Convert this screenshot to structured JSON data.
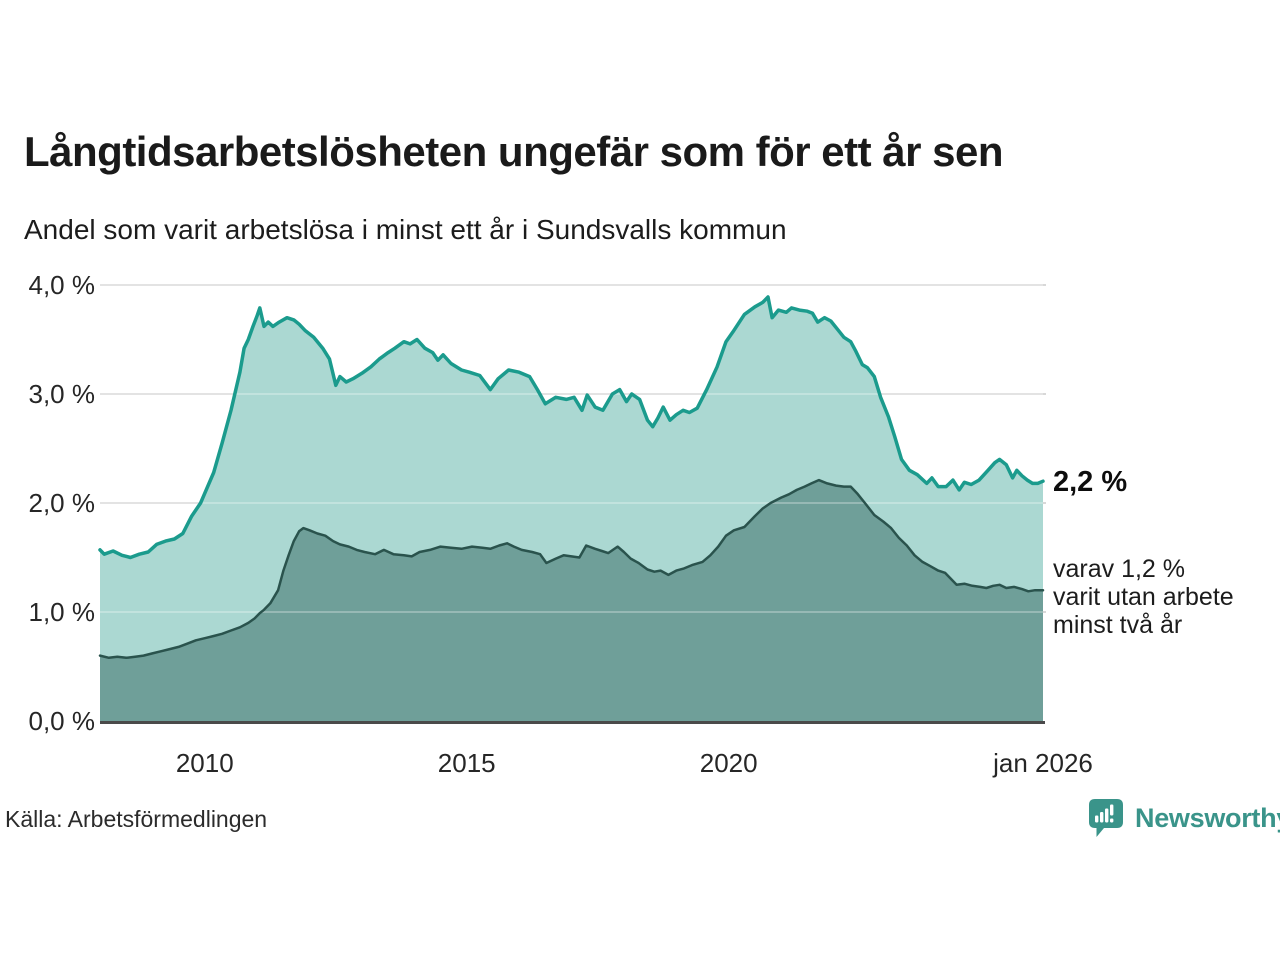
{
  "header": {
    "title": "Långtidsarbetslösheten ungefär som för ett år sen",
    "subtitle": "Andel som varit arbetslösa i minst ett år i Sundsvalls kommun"
  },
  "annotations": {
    "total_value": "2,2 %",
    "subset_lines": [
      "varav 1,2 %",
      "varit utan arbete",
      "minst två år"
    ]
  },
  "footer": {
    "source": "Källa: Arbetsförmedlingen",
    "brand": "Newsworthy"
  },
  "colors": {
    "accent_teal": "#1b9b8d",
    "light_fill": "#abd8d2",
    "dark_line": "#2a534d",
    "dark_fill": "#6f9f99",
    "gridline": "#d8d8d8",
    "axis": "#4a4a4a",
    "brand": "#3a948a",
    "text": "#1a1a1a"
  },
  "chart_data": {
    "type": "area",
    "title": "Långtidsarbetslösheten ungefär som för ett år sen",
    "subtitle": "Andel som varit arbetslösa i minst ett år i Sundsvalls kommun",
    "x_unit": "decimal_year",
    "x_range": [
      2008.0,
      2026.0
    ],
    "ylim": [
      0,
      4
    ],
    "grid": true,
    "y_ticks": [
      {
        "v": 0,
        "label": "0,0 %"
      },
      {
        "v": 1,
        "label": "1,0 %"
      },
      {
        "v": 2,
        "label": "2,0 %"
      },
      {
        "v": 3,
        "label": "3,0 %"
      },
      {
        "v": 4,
        "label": "4,0 %"
      }
    ],
    "x_ticks": [
      {
        "t": 2010,
        "label": "2010"
      },
      {
        "t": 2015,
        "label": "2015"
      },
      {
        "t": 2020,
        "label": "2020"
      },
      {
        "t": 2026,
        "label": "jan 2026"
      }
    ],
    "series": [
      {
        "id": "total",
        "name": "Andel som varit arbetslösa i minst ett år",
        "end_label": "2,2 %",
        "color": "#1b9b8d",
        "fill": "#abd8d2",
        "stroke_width": 3.5,
        "points": [
          [
            2008.0,
            1.57
          ],
          [
            2008.08,
            1.53
          ],
          [
            2008.25,
            1.56
          ],
          [
            2008.42,
            1.52
          ],
          [
            2008.58,
            1.5
          ],
          [
            2008.75,
            1.53
          ],
          [
            2008.92,
            1.55
          ],
          [
            2009.08,
            1.62
          ],
          [
            2009.25,
            1.65
          ],
          [
            2009.42,
            1.67
          ],
          [
            2009.58,
            1.72
          ],
          [
            2009.75,
            1.88
          ],
          [
            2009.92,
            2.0
          ],
          [
            2010.0,
            2.09
          ],
          [
            2010.17,
            2.28
          ],
          [
            2010.33,
            2.55
          ],
          [
            2010.5,
            2.85
          ],
          [
            2010.67,
            3.2
          ],
          [
            2010.75,
            3.42
          ],
          [
            2010.83,
            3.5
          ],
          [
            2010.92,
            3.62
          ],
          [
            2011.0,
            3.72
          ],
          [
            2011.05,
            3.79
          ],
          [
            2011.13,
            3.62
          ],
          [
            2011.21,
            3.66
          ],
          [
            2011.3,
            3.62
          ],
          [
            2011.42,
            3.66
          ],
          [
            2011.57,
            3.7
          ],
          [
            2011.7,
            3.68
          ],
          [
            2011.8,
            3.64
          ],
          [
            2011.92,
            3.58
          ],
          [
            2012.08,
            3.52
          ],
          [
            2012.25,
            3.42
          ],
          [
            2012.38,
            3.32
          ],
          [
            2012.5,
            3.08
          ],
          [
            2012.58,
            3.16
          ],
          [
            2012.7,
            3.11
          ],
          [
            2012.83,
            3.14
          ],
          [
            2013.0,
            3.19
          ],
          [
            2013.17,
            3.25
          ],
          [
            2013.33,
            3.32
          ],
          [
            2013.5,
            3.38
          ],
          [
            2013.63,
            3.42
          ],
          [
            2013.8,
            3.48
          ],
          [
            2013.92,
            3.46
          ],
          [
            2014.05,
            3.5
          ],
          [
            2014.2,
            3.42
          ],
          [
            2014.35,
            3.38
          ],
          [
            2014.45,
            3.31
          ],
          [
            2014.55,
            3.36
          ],
          [
            2014.7,
            3.28
          ],
          [
            2014.9,
            3.22
          ],
          [
            2015.05,
            3.2
          ],
          [
            2015.25,
            3.17
          ],
          [
            2015.45,
            3.04
          ],
          [
            2015.6,
            3.14
          ],
          [
            2015.8,
            3.22
          ],
          [
            2016.0,
            3.2
          ],
          [
            2016.2,
            3.16
          ],
          [
            2016.35,
            3.04
          ],
          [
            2016.5,
            2.91
          ],
          [
            2016.7,
            2.97
          ],
          [
            2016.9,
            2.95
          ],
          [
            2017.05,
            2.97
          ],
          [
            2017.2,
            2.85
          ],
          [
            2017.3,
            2.99
          ],
          [
            2017.45,
            2.88
          ],
          [
            2017.6,
            2.85
          ],
          [
            2017.78,
            3.0
          ],
          [
            2017.92,
            3.04
          ],
          [
            2018.05,
            2.93
          ],
          [
            2018.15,
            3.0
          ],
          [
            2018.3,
            2.95
          ],
          [
            2018.45,
            2.76
          ],
          [
            2018.55,
            2.7
          ],
          [
            2018.65,
            2.78
          ],
          [
            2018.75,
            2.88
          ],
          [
            2018.88,
            2.76
          ],
          [
            2019.0,
            2.81
          ],
          [
            2019.13,
            2.85
          ],
          [
            2019.25,
            2.83
          ],
          [
            2019.4,
            2.87
          ],
          [
            2019.58,
            3.04
          ],
          [
            2019.78,
            3.25
          ],
          [
            2019.95,
            3.48
          ],
          [
            2020.08,
            3.57
          ],
          [
            2020.3,
            3.73
          ],
          [
            2020.5,
            3.8
          ],
          [
            2020.65,
            3.84
          ],
          [
            2020.75,
            3.89
          ],
          [
            2020.83,
            3.7
          ],
          [
            2020.95,
            3.77
          ],
          [
            2021.1,
            3.75
          ],
          [
            2021.2,
            3.79
          ],
          [
            2021.35,
            3.77
          ],
          [
            2021.5,
            3.76
          ],
          [
            2021.6,
            3.74
          ],
          [
            2021.7,
            3.66
          ],
          [
            2021.83,
            3.7
          ],
          [
            2021.95,
            3.67
          ],
          [
            2022.1,
            3.58
          ],
          [
            2022.2,
            3.52
          ],
          [
            2022.33,
            3.48
          ],
          [
            2022.42,
            3.4
          ],
          [
            2022.55,
            3.27
          ],
          [
            2022.65,
            3.24
          ],
          [
            2022.78,
            3.16
          ],
          [
            2022.9,
            2.97
          ],
          [
            2023.05,
            2.79
          ],
          [
            2023.17,
            2.61
          ],
          [
            2023.3,
            2.4
          ],
          [
            2023.45,
            2.3
          ],
          [
            2023.6,
            2.26
          ],
          [
            2023.78,
            2.18
          ],
          [
            2023.88,
            2.23
          ],
          [
            2024.0,
            2.15
          ],
          [
            2024.15,
            2.15
          ],
          [
            2024.28,
            2.21
          ],
          [
            2024.4,
            2.12
          ],
          [
            2024.5,
            2.19
          ],
          [
            2024.63,
            2.17
          ],
          [
            2024.78,
            2.21
          ],
          [
            2024.95,
            2.3
          ],
          [
            2025.08,
            2.37
          ],
          [
            2025.17,
            2.4
          ],
          [
            2025.3,
            2.35
          ],
          [
            2025.42,
            2.23
          ],
          [
            2025.5,
            2.3
          ],
          [
            2025.6,
            2.25
          ],
          [
            2025.7,
            2.21
          ],
          [
            2025.8,
            2.18
          ],
          [
            2025.9,
            2.18
          ],
          [
            2026.0,
            2.2
          ]
        ]
      },
      {
        "id": "subset",
        "name": "varav utan arbete minst två år",
        "end_label": "1,2 %",
        "color": "#2a534d",
        "fill": "#6f9f99",
        "stroke_width": 2.5,
        "points": [
          [
            2008.0,
            0.6
          ],
          [
            2008.17,
            0.58
          ],
          [
            2008.33,
            0.59
          ],
          [
            2008.5,
            0.58
          ],
          [
            2008.67,
            0.59
          ],
          [
            2008.83,
            0.6
          ],
          [
            2009.0,
            0.62
          ],
          [
            2009.17,
            0.64
          ],
          [
            2009.33,
            0.66
          ],
          [
            2009.5,
            0.68
          ],
          [
            2009.67,
            0.71
          ],
          [
            2009.83,
            0.74
          ],
          [
            2010.0,
            0.76
          ],
          [
            2010.17,
            0.78
          ],
          [
            2010.33,
            0.8
          ],
          [
            2010.5,
            0.83
          ],
          [
            2010.67,
            0.86
          ],
          [
            2010.83,
            0.9
          ],
          [
            2010.95,
            0.94
          ],
          [
            2011.05,
            0.99
          ],
          [
            2011.13,
            1.02
          ],
          [
            2011.25,
            1.08
          ],
          [
            2011.4,
            1.2
          ],
          [
            2011.5,
            1.38
          ],
          [
            2011.6,
            1.52
          ],
          [
            2011.7,
            1.65
          ],
          [
            2011.8,
            1.74
          ],
          [
            2011.88,
            1.77
          ],
          [
            2012.0,
            1.75
          ],
          [
            2012.15,
            1.72
          ],
          [
            2012.3,
            1.7
          ],
          [
            2012.45,
            1.65
          ],
          [
            2012.58,
            1.62
          ],
          [
            2012.75,
            1.6
          ],
          [
            2012.9,
            1.57
          ],
          [
            2013.05,
            1.55
          ],
          [
            2013.25,
            1.53
          ],
          [
            2013.42,
            1.57
          ],
          [
            2013.6,
            1.53
          ],
          [
            2013.8,
            1.52
          ],
          [
            2013.95,
            1.51
          ],
          [
            2014.1,
            1.55
          ],
          [
            2014.3,
            1.57
          ],
          [
            2014.5,
            1.6
          ],
          [
            2014.7,
            1.59
          ],
          [
            2014.9,
            1.58
          ],
          [
            2015.1,
            1.6
          ],
          [
            2015.3,
            1.59
          ],
          [
            2015.45,
            1.58
          ],
          [
            2015.62,
            1.61
          ],
          [
            2015.77,
            1.63
          ],
          [
            2015.9,
            1.6
          ],
          [
            2016.05,
            1.57
          ],
          [
            2016.25,
            1.55
          ],
          [
            2016.4,
            1.53
          ],
          [
            2016.52,
            1.45
          ],
          [
            2016.7,
            1.49
          ],
          [
            2016.85,
            1.52
          ],
          [
            2017.0,
            1.51
          ],
          [
            2017.15,
            1.5
          ],
          [
            2017.28,
            1.61
          ],
          [
            2017.45,
            1.58
          ],
          [
            2017.58,
            1.56
          ],
          [
            2017.7,
            1.54
          ],
          [
            2017.88,
            1.6
          ],
          [
            2018.0,
            1.55
          ],
          [
            2018.13,
            1.49
          ],
          [
            2018.28,
            1.45
          ],
          [
            2018.45,
            1.39
          ],
          [
            2018.58,
            1.37
          ],
          [
            2018.7,
            1.38
          ],
          [
            2018.85,
            1.34
          ],
          [
            2019.0,
            1.38
          ],
          [
            2019.15,
            1.4
          ],
          [
            2019.3,
            1.43
          ],
          [
            2019.5,
            1.46
          ],
          [
            2019.65,
            1.52
          ],
          [
            2019.8,
            1.6
          ],
          [
            2019.95,
            1.7
          ],
          [
            2020.1,
            1.75
          ],
          [
            2020.3,
            1.78
          ],
          [
            2020.5,
            1.88
          ],
          [
            2020.65,
            1.95
          ],
          [
            2020.8,
            2.0
          ],
          [
            2021.0,
            2.05
          ],
          [
            2021.15,
            2.08
          ],
          [
            2021.3,
            2.12
          ],
          [
            2021.45,
            2.15
          ],
          [
            2021.58,
            2.18
          ],
          [
            2021.72,
            2.21
          ],
          [
            2021.88,
            2.18
          ],
          [
            2022.05,
            2.16
          ],
          [
            2022.2,
            2.15
          ],
          [
            2022.33,
            2.15
          ],
          [
            2022.45,
            2.09
          ],
          [
            2022.6,
            2.0
          ],
          [
            2022.78,
            1.89
          ],
          [
            2022.95,
            1.83
          ],
          [
            2023.1,
            1.77
          ],
          [
            2023.25,
            1.68
          ],
          [
            2023.4,
            1.61
          ],
          [
            2023.55,
            1.52
          ],
          [
            2023.7,
            1.46
          ],
          [
            2023.85,
            1.42
          ],
          [
            2024.0,
            1.38
          ],
          [
            2024.13,
            1.36
          ],
          [
            2024.25,
            1.3
          ],
          [
            2024.35,
            1.25
          ],
          [
            2024.5,
            1.26
          ],
          [
            2024.65,
            1.24
          ],
          [
            2024.8,
            1.23
          ],
          [
            2024.92,
            1.22
          ],
          [
            2025.05,
            1.24
          ],
          [
            2025.17,
            1.25
          ],
          [
            2025.3,
            1.22
          ],
          [
            2025.45,
            1.23
          ],
          [
            2025.6,
            1.21
          ],
          [
            2025.72,
            1.19
          ],
          [
            2025.85,
            1.2
          ],
          [
            2026.0,
            1.2
          ]
        ]
      }
    ]
  }
}
